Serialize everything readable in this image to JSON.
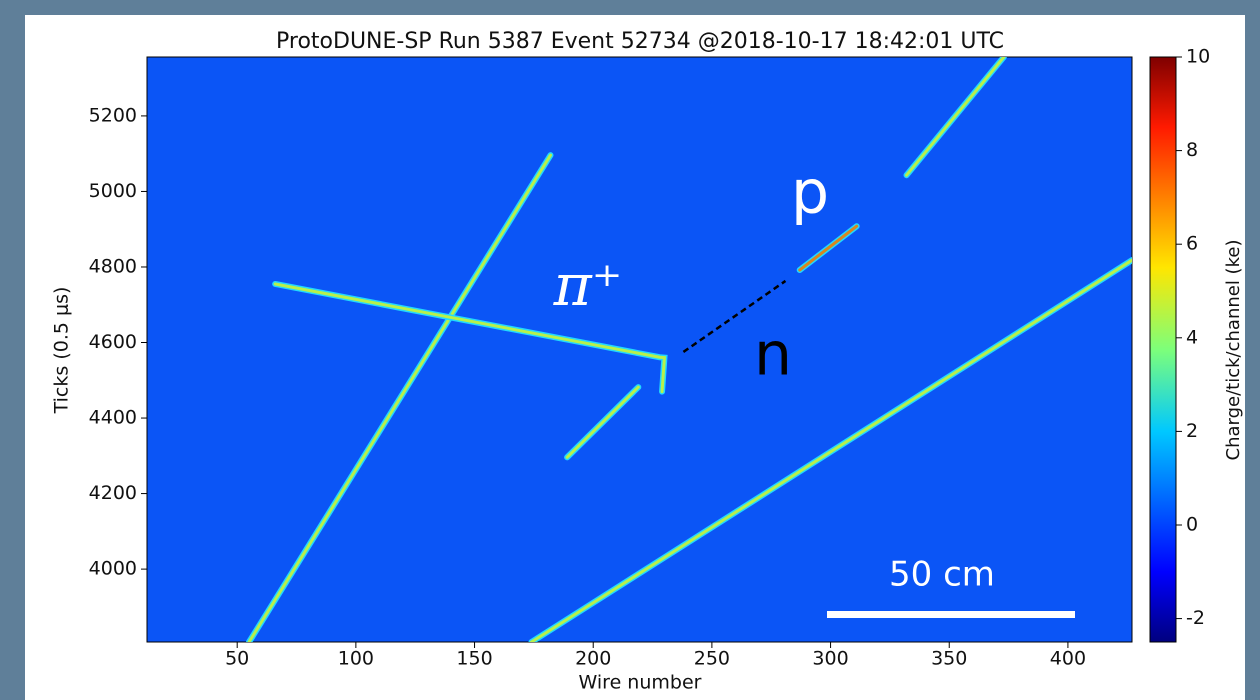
{
  "chart_data": {
    "type": "line",
    "title": "ProtoDUNE-SP Run 5387 Event 52734 @2018-10-17 18:42:01 UTC",
    "x_label": "Wire number",
    "y_label": "Ticks (0.5 μs)",
    "xlim": [
      12,
      427
    ],
    "ylim": [
      3807,
      5356
    ],
    "xticks": [
      50,
      100,
      150,
      200,
      250,
      300,
      350,
      400
    ],
    "yticks": [
      4000,
      4200,
      4400,
      4600,
      4800,
      5000,
      5200
    ],
    "colorbar": {
      "label": "Charge/tick/channel (ke)",
      "lim": [
        -2.5,
        10
      ],
      "ticks": [
        -2,
        0,
        2,
        4,
        6,
        8,
        10
      ]
    },
    "series": [
      {
        "color": "#b8f04a",
        "x": [
          55,
          182
        ],
        "values": [
          3807,
          5096
        ]
      },
      {
        "color": "#b8f04a",
        "x": [
          66,
          228,
          230,
          229
        ],
        "values": [
          4755,
          4561,
          4560,
          4470
        ]
      },
      {
        "color": "#d9861f",
        "x": [
          287,
          311
        ],
        "values": [
          4792,
          4908
        ]
      },
      {
        "color": "#000000",
        "style": "dashed",
        "x": [
          238,
          281
        ],
        "values": [
          4575,
          4763
        ]
      },
      {
        "color": "#b8f04a",
        "x": [
          174,
          427
        ],
        "values": [
          3807,
          4818
        ]
      },
      {
        "color": "#b8f04a",
        "x": [
          332,
          373
        ],
        "values": [
          5043,
          5356
        ]
      },
      {
        "color": "#b8f04a",
        "x": [
          189,
          219
        ],
        "values": [
          4296,
          4482
        ]
      }
    ],
    "annotations": [
      "π⁺",
      "p",
      "n",
      "50 cm"
    ]
  }
}
